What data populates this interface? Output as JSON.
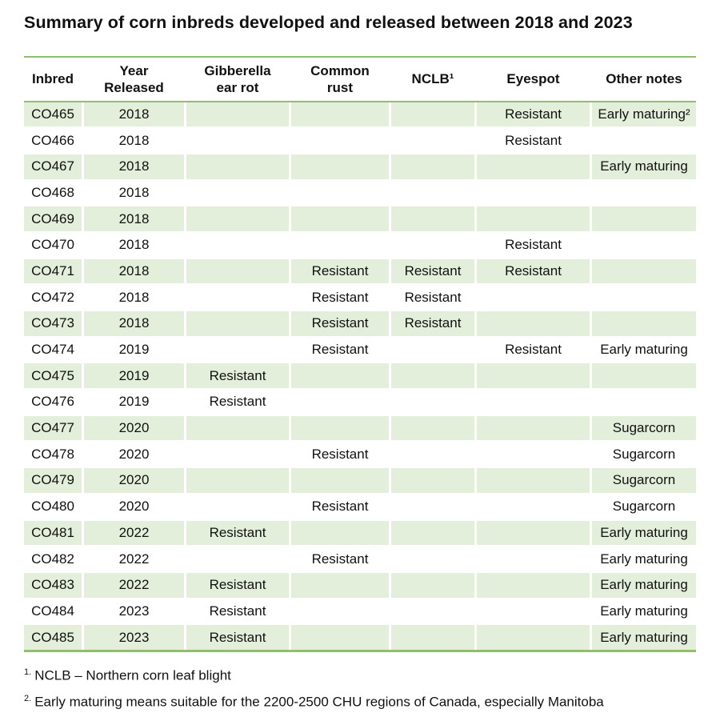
{
  "page": {
    "title": "Summary of corn inbreds developed and released between 2018 and 2023"
  },
  "table": {
    "columns": [
      {
        "key": "inbred",
        "label": "Inbred"
      },
      {
        "key": "year",
        "label": "Year\nReleased"
      },
      {
        "key": "gibberella",
        "label": "Gibberella\near rot"
      },
      {
        "key": "common_rust",
        "label": "Common\nrust"
      },
      {
        "key": "nclb",
        "label": "NCLB¹"
      },
      {
        "key": "eyespot",
        "label": "Eyespot"
      },
      {
        "key": "other_notes",
        "label": "Other notes"
      }
    ],
    "rows": [
      {
        "inbred": "CO465",
        "year": "2018",
        "gibberella": "",
        "common_rust": "",
        "nclb": "",
        "eyespot": "Resistant",
        "other_notes": "Early maturing²"
      },
      {
        "inbred": "CO466",
        "year": "2018",
        "gibberella": "",
        "common_rust": "",
        "nclb": "",
        "eyespot": "Resistant",
        "other_notes": ""
      },
      {
        "inbred": "CO467",
        "year": "2018",
        "gibberella": "",
        "common_rust": "",
        "nclb": "",
        "eyespot": "",
        "other_notes": "Early maturing"
      },
      {
        "inbred": "CO468",
        "year": "2018",
        "gibberella": "",
        "common_rust": "",
        "nclb": "",
        "eyespot": "",
        "other_notes": ""
      },
      {
        "inbred": "CO469",
        "year": "2018",
        "gibberella": "",
        "common_rust": "",
        "nclb": "",
        "eyespot": "",
        "other_notes": ""
      },
      {
        "inbred": "CO470",
        "year": "2018",
        "gibberella": "",
        "common_rust": "",
        "nclb": "",
        "eyespot": "Resistant",
        "other_notes": ""
      },
      {
        "inbred": "CO471",
        "year": "2018",
        "gibberella": "",
        "common_rust": "Resistant",
        "nclb": "Resistant",
        "eyespot": "Resistant",
        "other_notes": ""
      },
      {
        "inbred": "CO472",
        "year": "2018",
        "gibberella": "",
        "common_rust": "Resistant",
        "nclb": "Resistant",
        "eyespot": "",
        "other_notes": ""
      },
      {
        "inbred": "CO473",
        "year": "2018",
        "gibberella": "",
        "common_rust": "Resistant",
        "nclb": "Resistant",
        "eyespot": "",
        "other_notes": ""
      },
      {
        "inbred": "CO474",
        "year": "2019",
        "gibberella": "",
        "common_rust": "Resistant",
        "nclb": "",
        "eyespot": "Resistant",
        "other_notes": "Early maturing"
      },
      {
        "inbred": "CO475",
        "year": "2019",
        "gibberella": "Resistant",
        "common_rust": "",
        "nclb": "",
        "eyespot": "",
        "other_notes": ""
      },
      {
        "inbred": "CO476",
        "year": "2019",
        "gibberella": "Resistant",
        "common_rust": "",
        "nclb": "",
        "eyespot": "",
        "other_notes": ""
      },
      {
        "inbred": "CO477",
        "year": "2020",
        "gibberella": "",
        "common_rust": "",
        "nclb": "",
        "eyespot": "",
        "other_notes": "Sugarcorn"
      },
      {
        "inbred": "CO478",
        "year": "2020",
        "gibberella": "",
        "common_rust": "Resistant",
        "nclb": "",
        "eyespot": "",
        "other_notes": "Sugarcorn"
      },
      {
        "inbred": "CO479",
        "year": "2020",
        "gibberella": "",
        "common_rust": "",
        "nclb": "",
        "eyespot": "",
        "other_notes": "Sugarcorn"
      },
      {
        "inbred": "CO480",
        "year": "2020",
        "gibberella": "",
        "common_rust": "Resistant",
        "nclb": "",
        "eyespot": "",
        "other_notes": "Sugarcorn"
      },
      {
        "inbred": "CO481",
        "year": "2022",
        "gibberella": "Resistant",
        "common_rust": "",
        "nclb": "",
        "eyespot": "",
        "other_notes": "Early maturing"
      },
      {
        "inbred": "CO482",
        "year": "2022",
        "gibberella": "",
        "common_rust": "Resistant",
        "nclb": "",
        "eyespot": "",
        "other_notes": "Early maturing"
      },
      {
        "inbred": "CO483",
        "year": "2022",
        "gibberella": "Resistant",
        "common_rust": "",
        "nclb": "",
        "eyespot": "",
        "other_notes": "Early maturing"
      },
      {
        "inbred": "CO484",
        "year": "2023",
        "gibberella": "Resistant",
        "common_rust": "",
        "nclb": "",
        "eyespot": "",
        "other_notes": "Early maturing"
      },
      {
        "inbred": "CO485",
        "year": "2023",
        "gibberella": "Resistant",
        "common_rust": "",
        "nclb": "",
        "eyespot": "",
        "other_notes": "Early maturing"
      }
    ]
  },
  "footnotes": [
    {
      "marker": "1.",
      "text": "NCLB – Northern corn leaf blight"
    },
    {
      "marker": "2.",
      "text": "Early maturing means suitable for the 2200-2500 CHU regions of Canada, especially Manitoba"
    }
  ],
  "colors": {
    "line_green": "#8fbf6c",
    "row_green": "#e3efda",
    "text": "#111111"
  }
}
